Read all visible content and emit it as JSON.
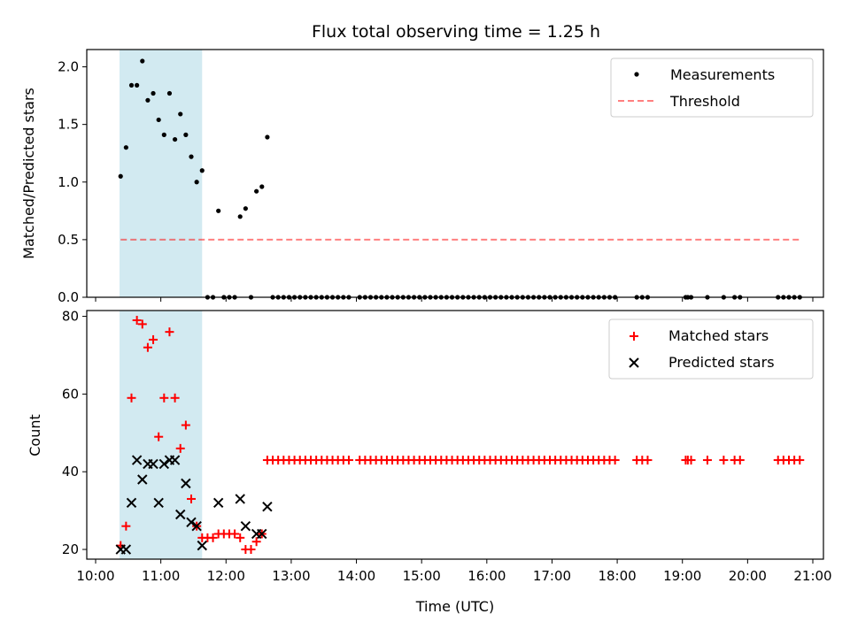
{
  "chart_data": [
    {
      "type": "scatter",
      "title": "Flux total observing time = 1.25 h",
      "xlabel": "",
      "ylabel": "Matched/Predicted stars",
      "xlim": [
        "10:00",
        "21:00"
      ],
      "ylim": [
        0,
        2.15
      ],
      "yticks": [
        0.0,
        0.5,
        1.0,
        1.5,
        2.0
      ],
      "ytick_labels": [
        "0.0",
        "0.5",
        "1.0",
        "1.5",
        "2.0"
      ],
      "shaded_region": {
        "x": [
          "10:22",
          "11:38"
        ],
        "color": "#add8e6"
      },
      "legend": {
        "placement": "top-right",
        "entries": [
          "Measurements",
          "Threshold"
        ]
      },
      "series": [
        {
          "name": "Measurements",
          "color": "#000000",
          "marker": "dot",
          "points": [
            [
              "10:23",
              1.05
            ],
            [
              "10:28",
              1.3
            ],
            [
              "10:33",
              1.84
            ],
            [
              "10:38",
              1.84
            ],
            [
              "10:43",
              2.05
            ],
            [
              "10:48",
              1.71
            ],
            [
              "10:53",
              1.77
            ],
            [
              "10:58",
              1.54
            ],
            [
              "11:03",
              1.41
            ],
            [
              "11:08",
              1.77
            ],
            [
              "11:13",
              1.37
            ],
            [
              "11:18",
              1.59
            ],
            [
              "11:23",
              1.41
            ],
            [
              "11:28",
              1.22
            ],
            [
              "11:33",
              1.0
            ],
            [
              "11:38",
              1.1
            ],
            [
              "11:43",
              0
            ],
            [
              "11:48",
              0
            ],
            [
              "11:53",
              0.75
            ],
            [
              "11:58",
              0
            ],
            [
              "12:03",
              0
            ],
            [
              "12:08",
              0
            ],
            [
              "12:13",
              0.7
            ],
            [
              "12:18",
              0.77
            ],
            [
              "12:23",
              0
            ],
            [
              "12:28",
              0.92
            ],
            [
              "12:33",
              0.96
            ],
            [
              "12:38",
              1.39
            ],
            [
              "12:43",
              0
            ],
            [
              "12:48",
              0
            ],
            [
              "12:53",
              0
            ],
            [
              "12:58",
              0
            ],
            [
              "13:03",
              0
            ],
            [
              "13:08",
              0
            ],
            [
              "13:13",
              0
            ],
            [
              "13:18",
              0
            ],
            [
              "13:23",
              0
            ],
            [
              "13:28",
              0
            ],
            [
              "13:33",
              0
            ],
            [
              "13:38",
              0
            ],
            [
              "13:43",
              0
            ],
            [
              "13:48",
              0
            ],
            [
              "13:53",
              0
            ],
            [
              "14:03",
              0
            ],
            [
              "14:08",
              0
            ],
            [
              "14:13",
              0
            ],
            [
              "14:18",
              0
            ],
            [
              "14:23",
              0
            ],
            [
              "14:28",
              0
            ],
            [
              "14:33",
              0
            ],
            [
              "14:38",
              0
            ],
            [
              "14:43",
              0
            ],
            [
              "14:48",
              0
            ],
            [
              "14:53",
              0
            ],
            [
              "14:58",
              0
            ],
            [
              "15:03",
              0
            ],
            [
              "15:08",
              0
            ],
            [
              "15:13",
              0
            ],
            [
              "15:18",
              0
            ],
            [
              "15:23",
              0
            ],
            [
              "15:28",
              0
            ],
            [
              "15:33",
              0
            ],
            [
              "15:38",
              0
            ],
            [
              "15:43",
              0
            ],
            [
              "15:48",
              0
            ],
            [
              "15:53",
              0
            ],
            [
              "15:58",
              0
            ],
            [
              "16:03",
              0
            ],
            [
              "16:08",
              0
            ],
            [
              "16:13",
              0
            ],
            [
              "16:18",
              0
            ],
            [
              "16:23",
              0
            ],
            [
              "16:28",
              0
            ],
            [
              "16:33",
              0
            ],
            [
              "16:38",
              0
            ],
            [
              "16:43",
              0
            ],
            [
              "16:48",
              0
            ],
            [
              "16:53",
              0
            ],
            [
              "16:58",
              0
            ],
            [
              "17:03",
              0
            ],
            [
              "17:08",
              0
            ],
            [
              "17:13",
              0
            ],
            [
              "17:18",
              0
            ],
            [
              "17:23",
              0
            ],
            [
              "17:28",
              0
            ],
            [
              "17:33",
              0
            ],
            [
              "17:38",
              0
            ],
            [
              "17:43",
              0
            ],
            [
              "17:48",
              0
            ],
            [
              "17:53",
              0
            ],
            [
              "17:58",
              0
            ],
            [
              "18:18",
              0
            ],
            [
              "18:23",
              0
            ],
            [
              "18:28",
              0
            ],
            [
              "19:03",
              0
            ],
            [
              "19:05",
              0
            ],
            [
              "19:08",
              0
            ],
            [
              "19:23",
              0
            ],
            [
              "19:38",
              0
            ],
            [
              "19:48",
              0
            ],
            [
              "19:53",
              0
            ],
            [
              "20:28",
              0
            ],
            [
              "20:33",
              0
            ],
            [
              "20:38",
              0
            ],
            [
              "20:43",
              0
            ],
            [
              "20:48",
              0
            ]
          ]
        },
        {
          "name": "Threshold",
          "color": "#ff0000",
          "style": "dashed",
          "opacity": 0.5,
          "points": [
            [
              "10:23",
              0.5
            ],
            [
              "20:48",
              0.5
            ]
          ]
        }
      ]
    },
    {
      "type": "scatter",
      "title": "",
      "xlabel": "Time (UTC)",
      "ylabel": "Count",
      "xlim": [
        "10:00",
        "21:00"
      ],
      "ylim": [
        17.5,
        81.5
      ],
      "yticks": [
        20,
        40,
        60,
        80
      ],
      "ytick_labels": [
        "20",
        "40",
        "60",
        "80"
      ],
      "xticks": [
        "10:00",
        "11:00",
        "12:00",
        "13:00",
        "14:00",
        "15:00",
        "16:00",
        "17:00",
        "18:00",
        "19:00",
        "20:00",
        "21:00"
      ],
      "xtick_labels": [
        "10:00",
        "11:00",
        "12:00",
        "13:00",
        "14:00",
        "15:00",
        "16:00",
        "17:00",
        "18:00",
        "19:00",
        "20:00",
        "21:00"
      ],
      "shaded_region": {
        "x": [
          "10:22",
          "11:38"
        ],
        "color": "#add8e6"
      },
      "legend": {
        "placement": "top-right",
        "entries": [
          "Matched stars",
          "Predicted stars"
        ]
      },
      "series": [
        {
          "name": "Matched stars",
          "color": "#ff0000",
          "marker": "plus",
          "points": [
            [
              "10:23",
              21
            ],
            [
              "10:28",
              26
            ],
            [
              "10:33",
              59
            ],
            [
              "10:38",
              79
            ],
            [
              "10:43",
              78
            ],
            [
              "10:48",
              72
            ],
            [
              "10:53",
              74
            ],
            [
              "10:58",
              49
            ],
            [
              "11:03",
              59
            ],
            [
              "11:08",
              76
            ],
            [
              "11:13",
              59
            ],
            [
              "11:18",
              46
            ],
            [
              "11:23",
              52
            ],
            [
              "11:28",
              33
            ],
            [
              "11:33",
              26
            ],
            [
              "11:38",
              23
            ],
            [
              "11:43",
              23
            ],
            [
              "11:48",
              23
            ],
            [
              "11:53",
              24
            ],
            [
              "11:58",
              24
            ],
            [
              "12:03",
              24
            ],
            [
              "12:08",
              24
            ],
            [
              "12:13",
              23
            ],
            [
              "12:18",
              20
            ],
            [
              "12:23",
              20
            ],
            [
              "12:28",
              22
            ],
            [
              "12:33",
              24
            ],
            [
              "12:38",
              43
            ],
            [
              "12:43",
              43
            ],
            [
              "12:48",
              43
            ],
            [
              "12:53",
              43
            ],
            [
              "12:58",
              43
            ],
            [
              "13:03",
              43
            ],
            [
              "13:08",
              43
            ],
            [
              "13:13",
              43
            ],
            [
              "13:18",
              43
            ],
            [
              "13:23",
              43
            ],
            [
              "13:28",
              43
            ],
            [
              "13:33",
              43
            ],
            [
              "13:38",
              43
            ],
            [
              "13:43",
              43
            ],
            [
              "13:48",
              43
            ],
            [
              "13:53",
              43
            ],
            [
              "14:03",
              43
            ],
            [
              "14:08",
              43
            ],
            [
              "14:13",
              43
            ],
            [
              "14:18",
              43
            ],
            [
              "14:23",
              43
            ],
            [
              "14:28",
              43
            ],
            [
              "14:33",
              43
            ],
            [
              "14:38",
              43
            ],
            [
              "14:43",
              43
            ],
            [
              "14:48",
              43
            ],
            [
              "14:53",
              43
            ],
            [
              "14:58",
              43
            ],
            [
              "15:03",
              43
            ],
            [
              "15:08",
              43
            ],
            [
              "15:13",
              43
            ],
            [
              "15:18",
              43
            ],
            [
              "15:23",
              43
            ],
            [
              "15:28",
              43
            ],
            [
              "15:33",
              43
            ],
            [
              "15:38",
              43
            ],
            [
              "15:43",
              43
            ],
            [
              "15:48",
              43
            ],
            [
              "15:53",
              43
            ],
            [
              "15:58",
              43
            ],
            [
              "16:03",
              43
            ],
            [
              "16:08",
              43
            ],
            [
              "16:13",
              43
            ],
            [
              "16:18",
              43
            ],
            [
              "16:23",
              43
            ],
            [
              "16:28",
              43
            ],
            [
              "16:33",
              43
            ],
            [
              "16:38",
              43
            ],
            [
              "16:43",
              43
            ],
            [
              "16:48",
              43
            ],
            [
              "16:53",
              43
            ],
            [
              "16:58",
              43
            ],
            [
              "17:03",
              43
            ],
            [
              "17:08",
              43
            ],
            [
              "17:13",
              43
            ],
            [
              "17:18",
              43
            ],
            [
              "17:23",
              43
            ],
            [
              "17:28",
              43
            ],
            [
              "17:33",
              43
            ],
            [
              "17:38",
              43
            ],
            [
              "17:43",
              43
            ],
            [
              "17:48",
              43
            ],
            [
              "17:53",
              43
            ],
            [
              "17:58",
              43
            ],
            [
              "18:18",
              43
            ],
            [
              "18:23",
              43
            ],
            [
              "18:28",
              43
            ],
            [
              "19:03",
              43
            ],
            [
              "19:05",
              43
            ],
            [
              "19:08",
              43
            ],
            [
              "19:23",
              43
            ],
            [
              "19:38",
              43
            ],
            [
              "19:48",
              43
            ],
            [
              "19:53",
              43
            ],
            [
              "20:28",
              43
            ],
            [
              "20:33",
              43
            ],
            [
              "20:38",
              43
            ],
            [
              "20:43",
              43
            ],
            [
              "20:48",
              43
            ]
          ]
        },
        {
          "name": "Predicted stars",
          "color": "#000000",
          "marker": "x",
          "points": [
            [
              "10:23",
              20
            ],
            [
              "10:28",
              20
            ],
            [
              "10:33",
              32
            ],
            [
              "10:38",
              43
            ],
            [
              "10:43",
              38
            ],
            [
              "10:48",
              42
            ],
            [
              "10:53",
              42
            ],
            [
              "10:58",
              32
            ],
            [
              "11:03",
              42
            ],
            [
              "11:08",
              43
            ],
            [
              "11:13",
              43
            ],
            [
              "11:18",
              29
            ],
            [
              "11:23",
              37
            ],
            [
              "11:28",
              27
            ],
            [
              "11:33",
              26
            ],
            [
              "11:38",
              21
            ],
            [
              "11:53",
              32
            ],
            [
              "12:13",
              33
            ],
            [
              "12:18",
              26
            ],
            [
              "12:28",
              24
            ],
            [
              "12:33",
              24
            ],
            [
              "12:38",
              31
            ]
          ]
        }
      ]
    }
  ]
}
